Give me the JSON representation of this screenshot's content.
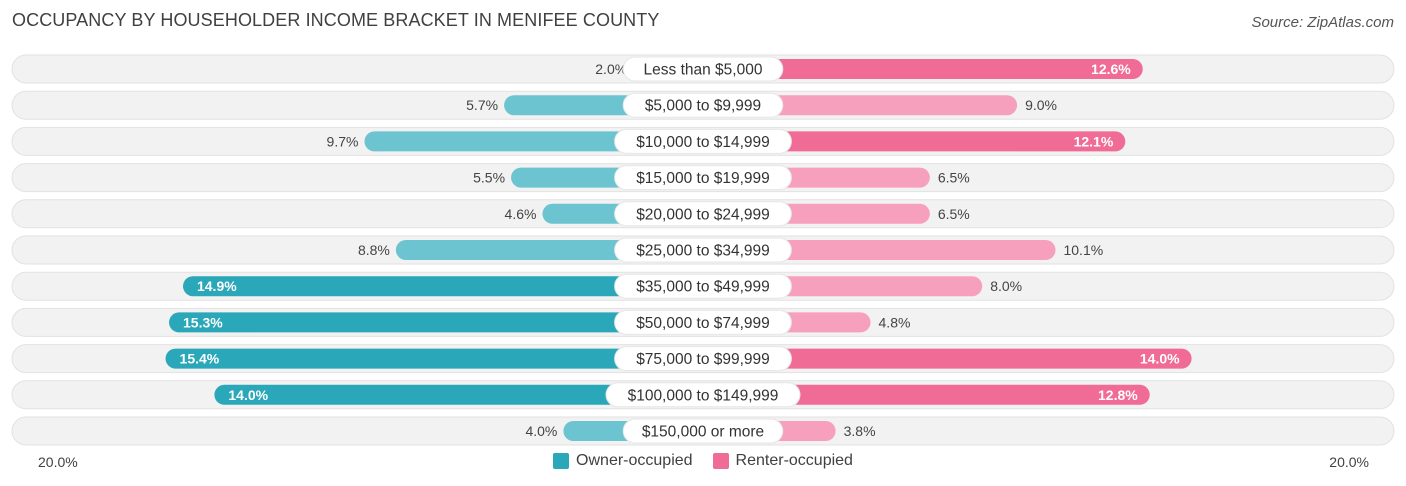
{
  "title": "OCCUPANCY BY HOUSEHOLDER INCOME BRACKET IN MENIFEE COUNTY",
  "source": "Source: ZipAtlas.com",
  "colors": {
    "owner": "#2aa7b8",
    "owner_light": "#6cc4d0",
    "renter": "#f06b96",
    "renter_light": "#f7a0bd",
    "row_bg": "#f2f2f2"
  },
  "axis": {
    "left_label": "20.0%",
    "right_label": "20.0%"
  },
  "legend": {
    "owner": "Owner-occupied",
    "renter": "Renter-occupied"
  },
  "chart_data": {
    "type": "bar",
    "orientation": "diverging-horizontal",
    "xlim": [
      -20,
      20
    ],
    "categories": [
      "Less than $5,000",
      "$5,000 to $9,999",
      "$10,000 to $14,999",
      "$15,000 to $19,999",
      "$20,000 to $24,999",
      "$25,000 to $34,999",
      "$35,000 to $49,999",
      "$50,000 to $74,999",
      "$75,000 to $99,999",
      "$100,000 to $149,999",
      "$150,000 or more"
    ],
    "series": [
      {
        "name": "Owner-occupied",
        "values": [
          2.0,
          5.7,
          9.7,
          5.5,
          4.6,
          8.8,
          14.9,
          15.3,
          15.4,
          14.0,
          4.0
        ],
        "labels": [
          "2.0%",
          "5.7%",
          "9.7%",
          "5.5%",
          "4.6%",
          "8.8%",
          "14.9%",
          "15.3%",
          "15.4%",
          "14.0%",
          "4.0%"
        ]
      },
      {
        "name": "Renter-occupied",
        "values": [
          12.6,
          9.0,
          12.1,
          6.5,
          6.5,
          10.1,
          8.0,
          4.8,
          14.0,
          12.8,
          3.8
        ],
        "labels": [
          "12.6%",
          "9.0%",
          "12.1%",
          "6.5%",
          "6.5%",
          "10.1%",
          "8.0%",
          "4.8%",
          "14.0%",
          "12.8%",
          "3.8%"
        ]
      }
    ]
  }
}
